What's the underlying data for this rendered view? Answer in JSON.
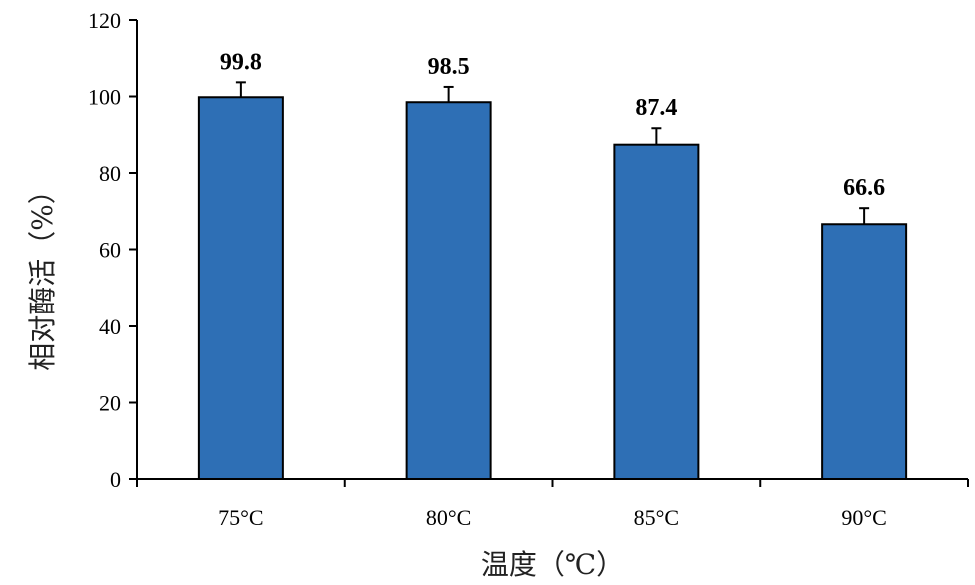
{
  "chart_data": {
    "type": "bar",
    "categories": [
      "75°C",
      "80°C",
      "85°C",
      "90°C"
    ],
    "values": [
      99.8,
      98.5,
      87.4,
      66.6
    ],
    "errors": [
      3.9,
      4.0,
      4.3,
      4.2
    ],
    "data_labels": [
      "99.8",
      "98.5",
      "87.4",
      "66.6"
    ],
    "xlabel": "温度（℃）",
    "ylabel": "相对酶活（%）",
    "ylim": [
      0,
      120
    ],
    "yticks": [
      0,
      20,
      40,
      60,
      80,
      100,
      120
    ],
    "grid": false,
    "bar_color": "#2E6FB5",
    "legend": "none"
  }
}
